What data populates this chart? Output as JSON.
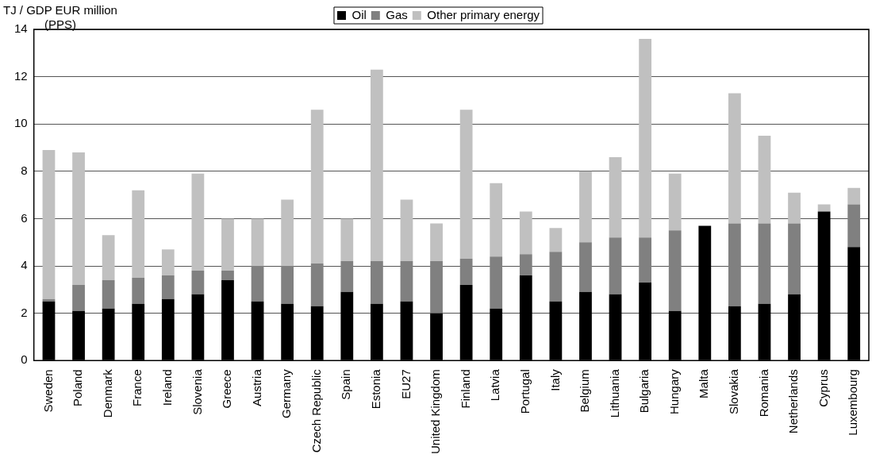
{
  "chart_data": {
    "type": "bar",
    "stacked": true,
    "ylabel": "TJ / GDP EUR million\n(PPS)",
    "categories": [
      "Sweden",
      "Poland",
      "Denmark",
      "France",
      "Ireland",
      "Slovenia",
      "Greece",
      "Austria",
      "Germany",
      "Czech Republic",
      "Spain",
      "Estonia",
      "EU27",
      "United Kingdom",
      "Finland",
      "Latvia",
      "Portugal",
      "Italy",
      "Belgium",
      "Lithuania",
      "Bulgaria",
      "Hungary",
      "Malta",
      "Slovakia",
      "Romania",
      "Netherlands",
      "Cyprus",
      "Luxembourg"
    ],
    "series": [
      {
        "name": "Oil",
        "color": "#000000",
        "values": [
          2.5,
          2.1,
          2.2,
          2.4,
          2.6,
          2.8,
          3.4,
          2.5,
          2.4,
          2.3,
          2.9,
          2.4,
          2.5,
          2.0,
          3.2,
          2.2,
          3.6,
          2.5,
          2.9,
          2.8,
          3.3,
          2.1,
          5.7,
          2.3,
          2.4,
          2.8,
          6.3,
          4.8
        ]
      },
      {
        "name": "Gas",
        "color": "#808080",
        "values": [
          0.1,
          1.1,
          1.2,
          1.1,
          1.0,
          1.0,
          0.4,
          1.5,
          1.6,
          1.8,
          1.3,
          1.8,
          1.7,
          2.2,
          1.1,
          2.2,
          0.9,
          2.1,
          2.1,
          2.4,
          1.9,
          3.4,
          0,
          3.5,
          3.4,
          3.0,
          0,
          1.8
        ]
      },
      {
        "name": "Other primary energy",
        "color": "#c0c0c0",
        "values": [
          6.3,
          5.6,
          1.9,
          3.7,
          1.1,
          4.1,
          2.2,
          2.0,
          2.8,
          6.5,
          1.8,
          8.1,
          2.6,
          1.6,
          6.3,
          3.1,
          1.8,
          1.0,
          3.0,
          3.4,
          8.4,
          2.4,
          0,
          5.5,
          3.7,
          1.3,
          0.3,
          0.7
        ]
      }
    ],
    "ylim": [
      0,
      14
    ],
    "yticks": [
      0,
      2,
      4,
      6,
      8,
      10,
      12,
      14
    ],
    "grid": "y",
    "legend": "top"
  }
}
